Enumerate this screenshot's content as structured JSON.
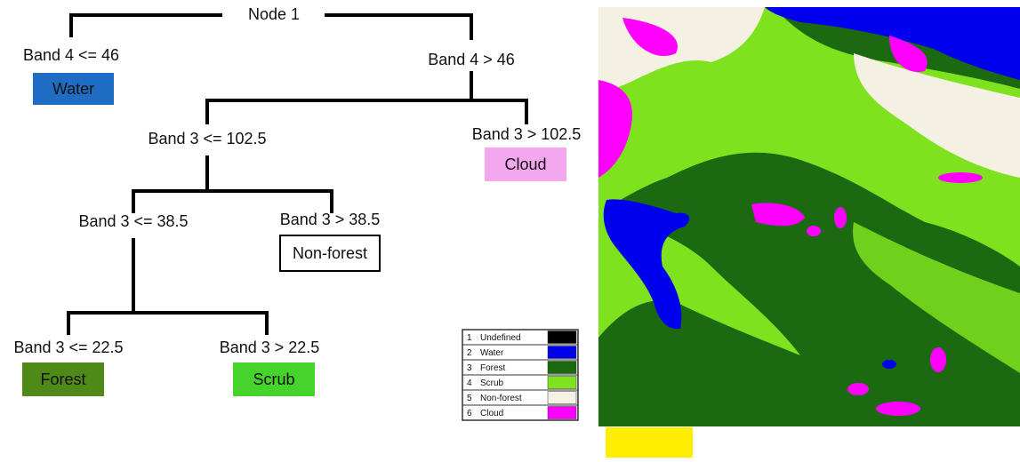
{
  "tree": {
    "root": "Node 1",
    "conditions": [
      "Band 4 <= 46",
      "Band 4 > 46",
      "Band 3 <= 102.5",
      "Band 3 > 102.5",
      "Band 3 <= 38.5",
      "Band 3 > 38.5",
      "Band 3 <= 22.5",
      "Band 3 > 22.5"
    ],
    "classes": [
      {
        "label": "Water",
        "color": "#1f6cc4"
      },
      {
        "label": "Cloud",
        "color": "#f2a7ee"
      },
      {
        "label": "Non-forest",
        "color": "#ffffff"
      },
      {
        "label": "Forest",
        "color": "#4f8a18"
      },
      {
        "label": "Scrub",
        "color": "#46d32c"
      }
    ]
  },
  "legend": {
    "items": [
      {
        "number": 1,
        "label": "Undefined",
        "color": "#000000"
      },
      {
        "number": 2,
        "label": "Water",
        "color": "#0000ee"
      },
      {
        "number": 3,
        "label": "Forest",
        "color": "#1b6a12"
      },
      {
        "number": 4,
        "label": "Scrub",
        "color": "#7fe21f"
      },
      {
        "number": 5,
        "label": "Non-forest",
        "color": "#f4f1e2"
      },
      {
        "number": 6,
        "label": "Cloud",
        "color": "#ff00ff"
      }
    ]
  }
}
